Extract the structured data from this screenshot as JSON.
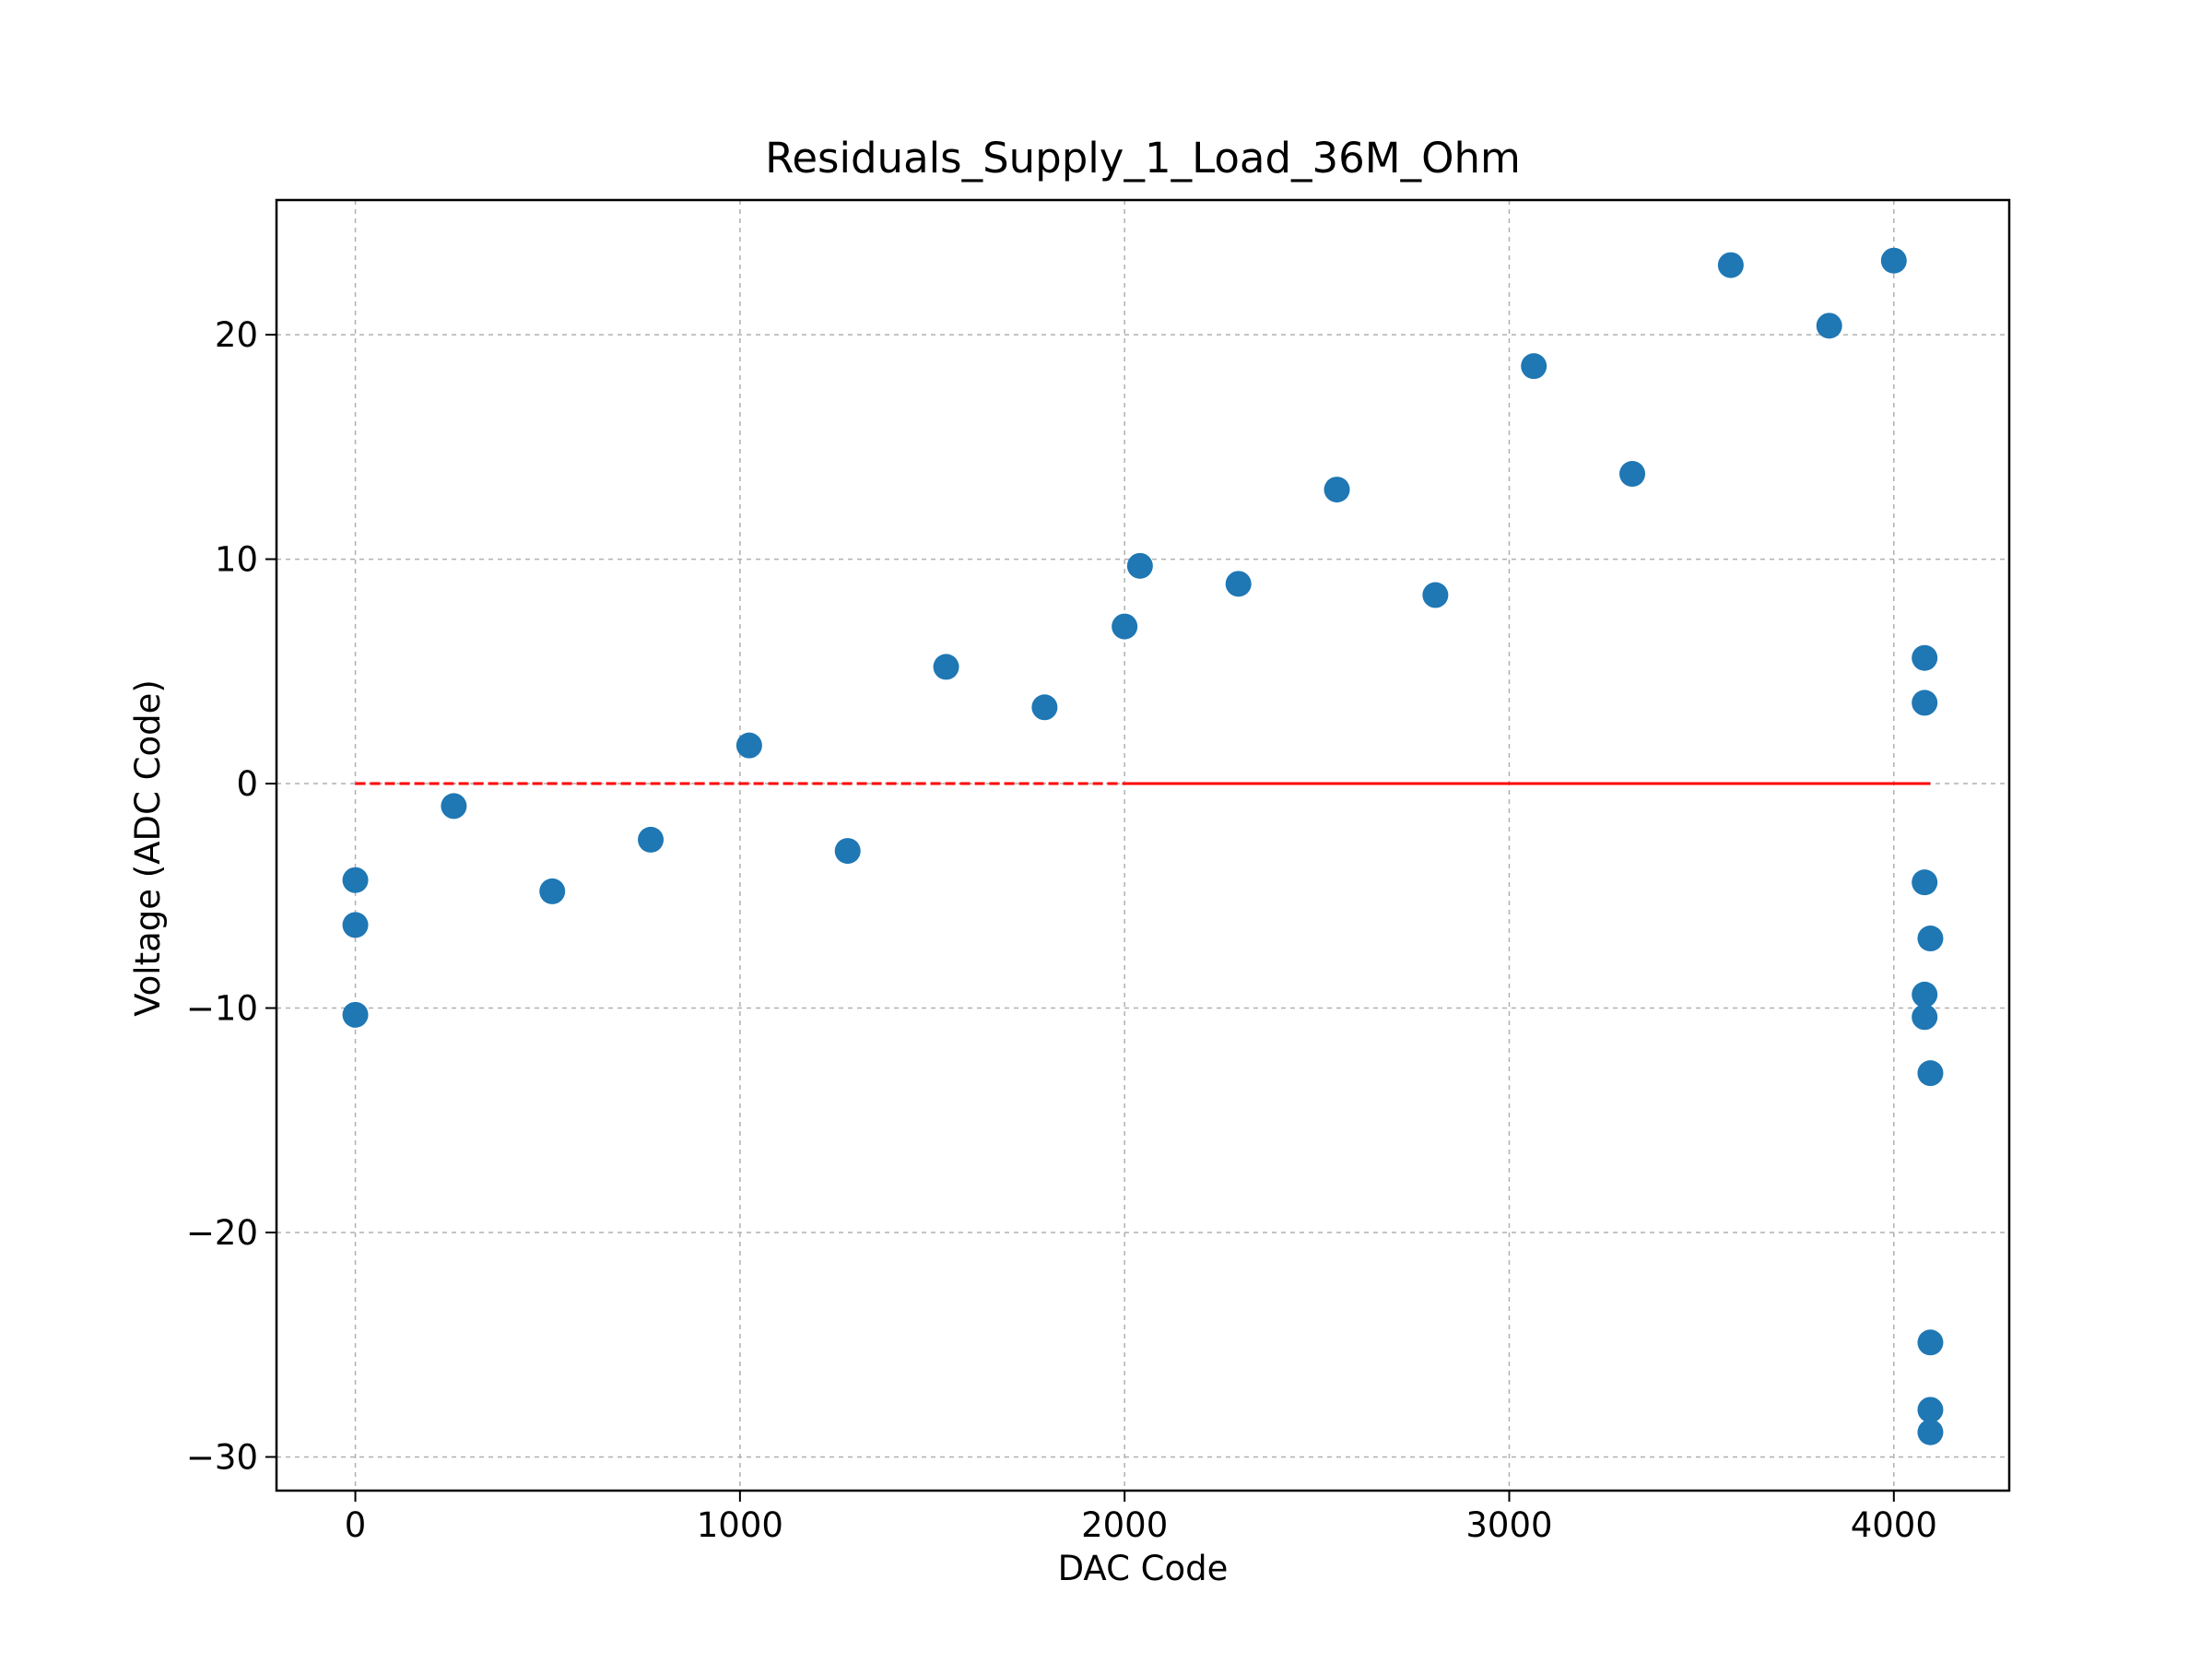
{
  "chart_data": {
    "type": "scatter",
    "title": "Residuals_Supply_1_Load_36M_Ohm",
    "xlabel": "DAC Code",
    "ylabel": "Voltage (ADC Code)",
    "xlim": [
      -205,
      4300
    ],
    "ylim": [
      -31.5,
      26
    ],
    "xticks": [
      0,
      1000,
      2000,
      3000,
      4000
    ],
    "xtick_labels": [
      "0",
      "1000",
      "2000",
      "3000",
      "4000"
    ],
    "yticks": [
      -30,
      -20,
      -10,
      0,
      10,
      20
    ],
    "ytick_labels": [
      "−30",
      "−20",
      "−10",
      "0",
      "10",
      "20"
    ],
    "grid": true,
    "point_color": "#1f77b4",
    "reference_line_color": "#ff0000",
    "series": [
      {
        "points": [
          [
            0,
            -4.3
          ],
          [
            0,
            -6.3
          ],
          [
            0,
            -10.3
          ],
          [
            256,
            -1.0
          ],
          [
            512,
            -4.8
          ],
          [
            768,
            -2.5
          ],
          [
            1024,
            1.7
          ],
          [
            1280,
            -3.0
          ],
          [
            1536,
            5.2
          ],
          [
            1792,
            3.4
          ],
          [
            2000,
            7.0
          ],
          [
            2040,
            9.7
          ],
          [
            2296,
            8.9
          ],
          [
            2552,
            13.1
          ],
          [
            2808,
            8.4
          ],
          [
            3064,
            18.6
          ],
          [
            3320,
            13.8
          ],
          [
            3576,
            23.1
          ],
          [
            3832,
            20.4
          ],
          [
            4000,
            23.3
          ],
          [
            4080,
            5.6
          ],
          [
            4080,
            3.6
          ],
          [
            4080,
            -4.4
          ],
          [
            4095,
            -6.9
          ],
          [
            4080,
            -9.4
          ],
          [
            4080,
            -10.4
          ],
          [
            4095,
            -12.9
          ],
          [
            4095,
            -24.9
          ],
          [
            4095,
            -27.9
          ],
          [
            4095,
            -28.9
          ]
        ]
      }
    ],
    "reference_lines": [
      {
        "style": "dashed",
        "x": [
          0,
          2000
        ],
        "y": [
          0,
          0
        ]
      },
      {
        "style": "solid",
        "x": [
          2000,
          4095
        ],
        "y": [
          0,
          0
        ]
      }
    ]
  }
}
